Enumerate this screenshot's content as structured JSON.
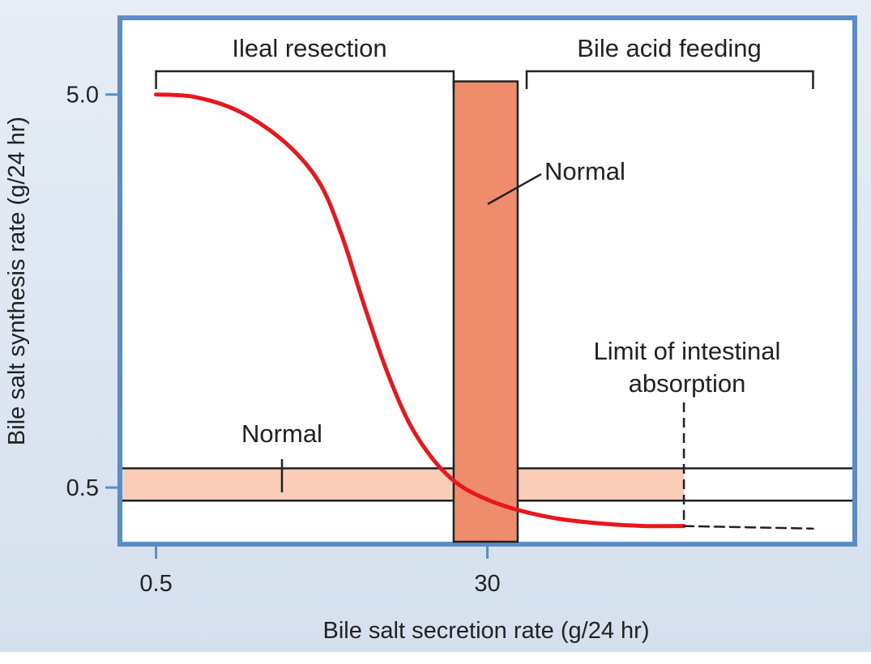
{
  "chart_data": {
    "type": "line",
    "title": "",
    "xlabel": "Bile salt secretion rate (g/24 hr)",
    "ylabel": "Bile salt synthesis rate (g/24 hr)",
    "x_ticks": [
      {
        "label": "0.5",
        "value": 0.5
      },
      {
        "label": "30",
        "value": 30
      }
    ],
    "y_ticks": [
      {
        "label": "5.0",
        "value": 5.0
      },
      {
        "label": "0.5",
        "value": 0.5
      }
    ],
    "xlim": [
      -2.5,
      62.5
    ],
    "ylim": [
      -0.12,
      5.85
    ],
    "series": [
      {
        "name": "Bile salt synthesis",
        "color": "#e8171b",
        "x": [
          0.5,
          4,
          8,
          12,
          15,
          17,
          19,
          21,
          23,
          25,
          27,
          29,
          32,
          36,
          40,
          44,
          47.5
        ],
        "y": [
          5.0,
          4.97,
          4.8,
          4.45,
          4.0,
          3.4,
          2.6,
          1.85,
          1.25,
          0.85,
          0.58,
          0.42,
          0.27,
          0.15,
          0.09,
          0.06,
          0.06
        ]
      },
      {
        "name": "Extrapolated",
        "style": "dashed",
        "color": "#222222",
        "x": [
          47.5,
          59
        ],
        "y": [
          0.06,
          0.03
        ]
      }
    ],
    "normal_synthesis_band": {
      "label": "Normal",
      "y_min": 0.35,
      "y_max": 0.72,
      "color": "#f9cdb8"
    },
    "normal_secretion_bar": {
      "label": "Normal",
      "x_min": 27,
      "x_max": 32.7,
      "top": 5.15,
      "color": "#ef8c6c"
    },
    "limit_line": {
      "x": 47.5,
      "label_lines": [
        "Limit of intestinal",
        "absorption"
      ]
    },
    "brackets": [
      {
        "label": "Ileal resection",
        "x_start": 0.5,
        "x_end": 27
      },
      {
        "label": "Bile acid feeding",
        "x_start": 33.5,
        "x_end": 59
      }
    ]
  },
  "colors": {
    "frame": "#5b8cc9",
    "curve": "#e8171b",
    "band": "#f9cdb8",
    "bar": "#ef8c6c",
    "ink": "#222222"
  }
}
